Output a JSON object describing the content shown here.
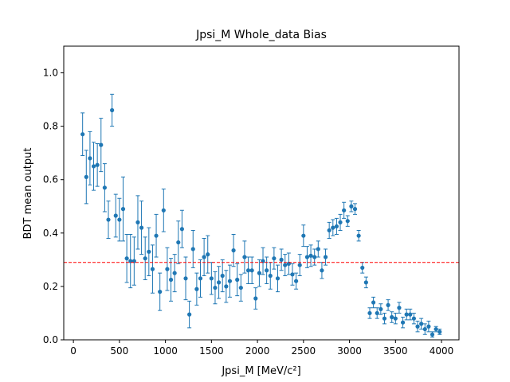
{
  "chart_data": {
    "type": "errorbar",
    "title": "Jpsi_M Whole_data Bias",
    "xlabel": "Jpsi_M [MeV/c²]",
    "ylabel": "BDT mean output",
    "x": [
      100,
      140,
      180,
      220,
      260,
      300,
      340,
      380,
      420,
      460,
      500,
      540,
      580,
      620,
      660,
      700,
      740,
      780,
      820,
      860,
      900,
      940,
      980,
      1020,
      1060,
      1100,
      1140,
      1180,
      1220,
      1260,
      1300,
      1340,
      1380,
      1420,
      1460,
      1500,
      1540,
      1580,
      1620,
      1660,
      1700,
      1740,
      1780,
      1820,
      1860,
      1900,
      1940,
      1980,
      2020,
      2060,
      2100,
      2140,
      2180,
      2220,
      2260,
      2300,
      2340,
      2380,
      2420,
      2460,
      2500,
      2540,
      2580,
      2620,
      2660,
      2700,
      2740,
      2780,
      2820,
      2860,
      2900,
      2940,
      2980,
      3020,
      3060,
      3100,
      3140,
      3180,
      3220,
      3260,
      3300,
      3340,
      3380,
      3420,
      3460,
      3500,
      3540,
      3580,
      3620,
      3660,
      3700,
      3740,
      3780,
      3820,
      3860,
      3900,
      3940,
      3980
    ],
    "values": [
      0.77,
      0.61,
      0.68,
      0.65,
      0.655,
      0.73,
      0.57,
      0.45,
      0.86,
      0.465,
      0.45,
      0.49,
      0.305,
      0.295,
      0.295,
      0.44,
      0.42,
      0.305,
      0.33,
      0.265,
      0.39,
      0.18,
      0.485,
      0.265,
      0.225,
      0.25,
      0.365,
      0.415,
      0.23,
      0.095,
      0.34,
      0.19,
      0.23,
      0.31,
      0.32,
      0.23,
      0.195,
      0.215,
      0.24,
      0.2,
      0.22,
      0.335,
      0.225,
      0.195,
      0.31,
      0.26,
      0.26,
      0.155,
      0.25,
      0.295,
      0.26,
      0.24,
      0.305,
      0.23,
      0.3,
      0.28,
      0.285,
      0.245,
      0.22,
      0.28,
      0.39,
      0.31,
      0.315,
      0.31,
      0.34,
      0.26,
      0.31,
      0.41,
      0.42,
      0.425,
      0.44,
      0.485,
      0.445,
      0.5,
      0.49,
      0.39,
      0.27,
      0.215,
      0.1,
      0.14,
      0.1,
      0.115,
      0.08,
      0.13,
      0.085,
      0.08,
      0.12,
      0.065,
      0.095,
      0.095,
      0.08,
      0.05,
      0.06,
      0.04,
      0.05,
      0.02,
      0.04,
      0.03
    ],
    "errors": [
      0.08,
      0.1,
      0.1,
      0.09,
      0.08,
      0.1,
      0.09,
      0.07,
      0.06,
      0.08,
      0.08,
      0.12,
      0.09,
      0.1,
      0.09,
      0.1,
      0.1,
      0.08,
      0.09,
      0.09,
      0.08,
      0.07,
      0.08,
      0.08,
      0.08,
      0.07,
      0.08,
      0.07,
      0.08,
      0.05,
      0.07,
      0.06,
      0.07,
      0.07,
      0.07,
      0.06,
      0.06,
      0.06,
      0.06,
      0.06,
      0.06,
      0.06,
      0.06,
      0.05,
      0.06,
      0.05,
      0.05,
      0.04,
      0.05,
      0.05,
      0.05,
      0.05,
      0.04,
      0.05,
      0.04,
      0.04,
      0.04,
      0.04,
      0.03,
      0.04,
      0.04,
      0.04,
      0.04,
      0.03,
      0.03,
      0.03,
      0.03,
      0.03,
      0.03,
      0.03,
      0.03,
      0.03,
      0.02,
      0.02,
      0.02,
      0.02,
      0.02,
      0.02,
      0.02,
      0.02,
      0.02,
      0.02,
      0.02,
      0.02,
      0.02,
      0.02,
      0.02,
      0.02,
      0.02,
      0.02,
      0.02,
      0.02,
      0.02,
      0.02,
      0.02,
      0.01,
      0.01,
      0.01
    ],
    "color": "#1f77b4",
    "hline": 0.29,
    "hline_color": "#ff0000",
    "xlim": [
      -105,
      4190
    ],
    "xticks": [
      0,
      500,
      1000,
      1500,
      2000,
      2500,
      3000,
      3500,
      4000
    ],
    "ylim": [
      0,
      1.1
    ],
    "yticks": [
      {
        "value": 0,
        "label": "0.0"
      },
      0.2,
      0.4,
      0.6,
      0.8,
      {
        "value": 1,
        "label": "1.0"
      }
    ]
  }
}
